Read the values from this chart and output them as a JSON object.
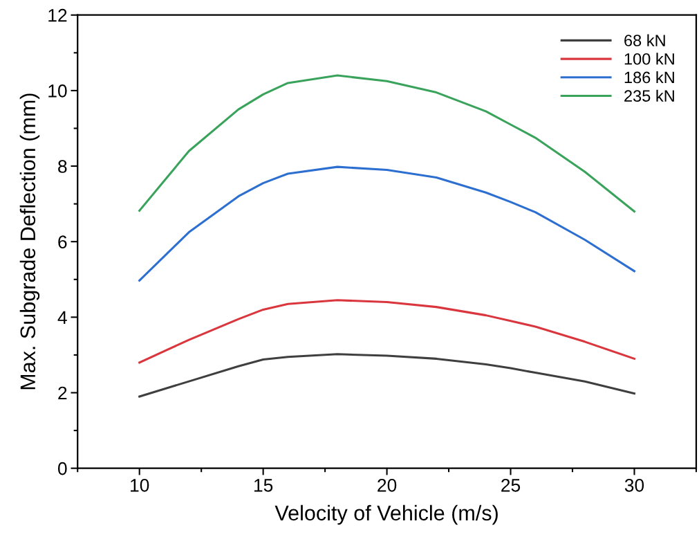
{
  "chart_data": {
    "type": "line",
    "xlabel": "Velocity of Vehicle (m/s)",
    "ylabel": "Max. Subgrade Deflection (mm)",
    "x": [
      10,
      12,
      14,
      15,
      16,
      18,
      20,
      22,
      24,
      25,
      26,
      28,
      30
    ],
    "series": [
      {
        "name": "68 kN",
        "color": "#3f3f3f",
        "values": [
          1.9,
          2.3,
          2.7,
          2.88,
          2.95,
          3.02,
          2.98,
          2.9,
          2.75,
          2.65,
          2.53,
          2.3,
          1.98
        ]
      },
      {
        "name": "100 kN",
        "color": "#d9363e",
        "values": [
          2.8,
          3.4,
          3.95,
          4.2,
          4.35,
          4.45,
          4.4,
          4.27,
          4.05,
          3.9,
          3.75,
          3.35,
          2.9
        ]
      },
      {
        "name": "186 kN",
        "color": "#2c6fd0",
        "values": [
          4.97,
          6.25,
          7.2,
          7.55,
          7.8,
          7.98,
          7.9,
          7.7,
          7.3,
          7.05,
          6.78,
          6.05,
          5.22
        ]
      },
      {
        "name": "235 kN",
        "color": "#3aa35b",
        "values": [
          6.82,
          8.4,
          9.5,
          9.9,
          10.2,
          10.4,
          10.25,
          9.95,
          9.45,
          9.1,
          8.75,
          7.85,
          6.8
        ]
      }
    ],
    "xlim": [
      7.5,
      32.5
    ],
    "xticks": [
      10,
      15,
      20,
      25,
      30
    ],
    "ylim": [
      0,
      12
    ],
    "yticks": [
      0,
      2,
      4,
      6,
      8,
      10,
      12
    ],
    "legend": "top right",
    "grid": false,
    "marker": "none",
    "line_style": "solid"
  }
}
